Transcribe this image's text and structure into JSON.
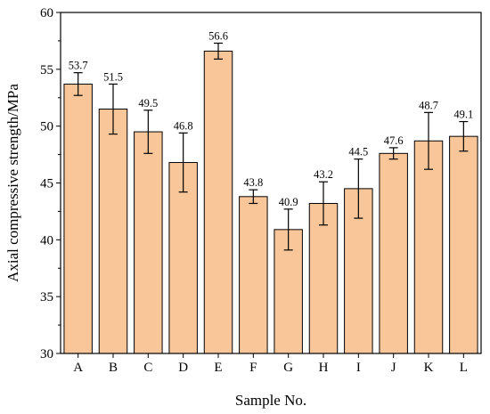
{
  "chart_data": {
    "type": "bar",
    "xlabel": "Sample No.",
    "ylabel": "Axial compressive strength/MPa",
    "ylim": [
      30,
      60
    ],
    "yticks": [
      30,
      35,
      40,
      45,
      50,
      55,
      60
    ],
    "categories": [
      "A",
      "B",
      "C",
      "D",
      "E",
      "F",
      "G",
      "H",
      "I",
      "J",
      "K",
      "L"
    ],
    "values": [
      53.7,
      51.5,
      49.5,
      46.8,
      56.6,
      43.8,
      40.9,
      43.2,
      44.5,
      47.6,
      48.7,
      49.1
    ],
    "value_labels": [
      "53.7",
      "51.5",
      "49.5",
      "46.8",
      "56.6",
      "43.8",
      "40.9",
      "43.2",
      "44.5",
      "47.6",
      "48.7",
      "49.1"
    ],
    "errors": [
      1.0,
      2.2,
      1.9,
      2.6,
      0.7,
      0.6,
      1.8,
      1.9,
      2.6,
      0.5,
      2.5,
      1.3
    ],
    "bar_color": "#f9c699",
    "grid": false,
    "legend": "none"
  }
}
